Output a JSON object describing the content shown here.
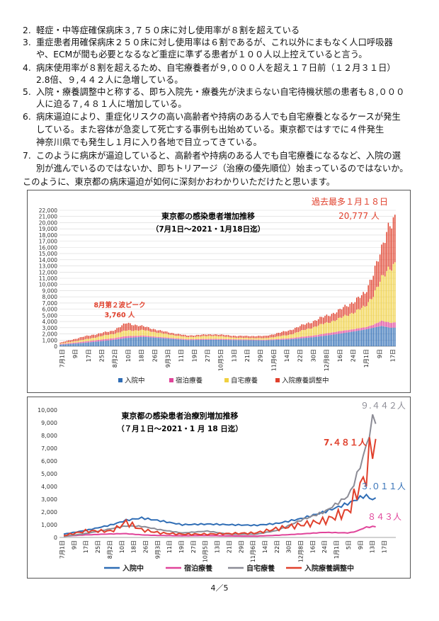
{
  "items": [
    {
      "num": "2.",
      "lines": [
        "軽症・中等症確保病床３,７５０床に対し使用率が８割を超えている"
      ]
    },
    {
      "num": "3.",
      "lines": [
        "重症患者用確保病床２５０床に対し使用率は６割であるが、これ以外にまもなく人口呼吸器",
        "や、ECMが間も必要となるなど重症に準ずる患者が１００人以上控えていると言う。"
      ]
    },
    {
      "num": "4.",
      "lines": [
        "病床使用率が８割を超えるため、自宅療養者が９,０００人を超え１７日前（１２月３１日）",
        "2.8倍、９,４４２人に急増している。"
      ]
    },
    {
      "num": "5.",
      "lines": [
        "入院・療養調整中と称する、即ち入院先・療養先が決まらない自宅待機状態の患者も８,０００",
        "人に迫る７,４８１人に増加している。"
      ]
    },
    {
      "num": "6.",
      "lines": [
        "病床逼迫により、重症化リスクの高い高齢者や持病のある人でも自宅療養となるケースが発生",
        "している。また容体が急変して死亡する事例も出始めている。東京都ではすでに４件発生",
        "神奈川県でも発生し１月に入り各地で目立ってきている。"
      ]
    },
    {
      "num": "7.",
      "lines": [
        "このように病床が逼迫していると、高齢者や持病のある人でも自宅療養になるなど、入院の選",
        "別が進んでいるのではないか、即ちトリアージ（治療の優先順位）始まっているのではないか。"
      ]
    }
  ],
  "closing": "このように、東京都の病床逼迫が如何に深刻かおわかりいただけたと思います。",
  "page_number": "4／5",
  "chart_data": [
    {
      "type": "bar",
      "stacked": true,
      "title": "東京都の感染患者増加推移",
      "subtitle": "（7月1日～2021・1月18日迄）",
      "x_tick_labels": [
        "7月1日",
        "9日",
        "17日",
        "25日",
        "8月2日",
        "10日",
        "18日",
        "26日",
        "9月3日",
        "11日",
        "19日",
        "27日",
        "10月5日",
        "13日",
        "21日",
        "29日",
        "11月6日",
        "14日",
        "22日",
        "30日",
        "12月8日",
        "16日",
        "24日",
        "1月1日",
        "9日",
        "17日"
      ],
      "y_ticks": [
        0,
        1000,
        2000,
        3000,
        4000,
        5000,
        6000,
        7000,
        8000,
        9000,
        10000,
        11000,
        12000,
        13000,
        14000,
        15000,
        16000,
        17000,
        18000,
        19000,
        20000,
        21000,
        22000
      ],
      "ylim": [
        0,
        22000
      ],
      "grid": true,
      "legend_position": "bottom",
      "series": [
        {
          "name": "入院中",
          "color": "#2f6db5"
        },
        {
          "name": "宿泊療養",
          "color": "#e0449a"
        },
        {
          "name": "自宅療養",
          "color": "#f0d040"
        },
        {
          "name": "入院療養調整中",
          "color": "#e0402c"
        }
      ],
      "daily_note": "values are per-day stacked totals; key points listed below",
      "x_dates": [
        "7/1",
        "7/15",
        "8/1",
        "8/10",
        "8/20",
        "9/1",
        "9/15",
        "10/1",
        "10/15",
        "11/1",
        "11/15",
        "12/1",
        "12/15",
        "12/31",
        "1/5",
        "1/10",
        "1/15",
        "1/18"
      ],
      "values": {
        "入院中": [
          260,
          550,
          1000,
          1350,
          1530,
          1300,
          1000,
          1050,
          1000,
          950,
          1100,
          1500,
          2000,
          2700,
          3000,
          3300,
          3000,
          3011
        ],
        "宿泊療養": [
          100,
          200,
          280,
          300,
          200,
          150,
          130,
          150,
          120,
          100,
          170,
          280,
          400,
          350,
          500,
          780,
          850,
          843
        ],
        "自宅療養": [
          80,
          300,
          700,
          900,
          870,
          600,
          350,
          500,
          250,
          250,
          550,
          1400,
          2000,
          3300,
          4900,
          6700,
          9200,
          9442
        ],
        "入院療養調整中": [
          150,
          500,
          500,
          1200,
          600,
          350,
          250,
          250,
          300,
          350,
          700,
          1000,
          1300,
          2100,
          3700,
          4500,
          7500,
          7481
        ]
      },
      "annotations": [
        {
          "text": "8月第２波ピーク",
          "value": "3,760 人"
        },
        {
          "text": "過去最多１月１８日",
          "value": "20,777 人"
        }
      ]
    },
    {
      "type": "line",
      "title": "東京都の感染患者治療別増加推移",
      "subtitle": "（７月１日～2021・1 月 18 日迄）",
      "x_tick_labels": [
        "7月1日",
        "9日",
        "17日",
        "25日",
        "8月2日",
        "10日",
        "18日",
        "26日",
        "9月3日",
        "11日",
        "19日",
        "27日",
        "10月5日",
        "13日",
        "21日",
        "29日",
        "11月6日",
        "14日",
        "22日",
        "30日",
        "12月8日",
        "16日",
        "24日",
        "1月1日",
        "5日",
        "9日",
        "13日",
        "17日"
      ],
      "y_ticks": [
        0,
        1000,
        2000,
        3000,
        4000,
        5000,
        6000,
        7000,
        8000,
        9000,
        10000
      ],
      "ylim": [
        0,
        10000
      ],
      "grid": false,
      "legend_position": "bottom",
      "x_dates": [
        "7/1",
        "7/15",
        "8/1",
        "8/10",
        "8/20",
        "9/1",
        "9/15",
        "10/1",
        "10/15",
        "11/1",
        "11/15",
        "12/1",
        "12/15",
        "12/31",
        "1/5",
        "1/10",
        "1/15",
        "1/18"
      ],
      "series": [
        {
          "name": "入院中",
          "color": "#2f6db5",
          "values": [
            260,
            550,
            1000,
            1350,
            1530,
            1300,
            1000,
            1050,
            1000,
            950,
            1100,
            1500,
            2000,
            2700,
            3000,
            3300,
            3000,
            3011
          ]
        },
        {
          "name": "宿泊療養",
          "color": "#e0449a",
          "values": [
            100,
            200,
            280,
            300,
            200,
            150,
            130,
            150,
            120,
            100,
            170,
            280,
            400,
            350,
            500,
            780,
            850,
            843
          ]
        },
        {
          "name": "自宅療養",
          "color": "#8c8c96",
          "values": [
            80,
            300,
            700,
            900,
            870,
            600,
            350,
            500,
            250,
            250,
            550,
            1400,
            2000,
            3300,
            4900,
            6700,
            9200,
            9442
          ]
        },
        {
          "name": "入院療養調整中",
          "color": "#e0402c",
          "values": [
            150,
            500,
            500,
            1200,
            600,
            350,
            250,
            250,
            300,
            350,
            700,
            1000,
            1300,
            2100,
            3700,
            4500,
            7500,
            7481
          ]
        }
      ],
      "end_labels": [
        {
          "series": "自宅療養",
          "text": "９.４４２人",
          "color": "#8c8c96"
        },
        {
          "series": "入院療養調整中",
          "text": "7.４８１人",
          "color": "#e0402c"
        },
        {
          "series": "入院中",
          "text": "３.０１１人",
          "color": "#2f6db5"
        },
        {
          "series": "宿泊療養",
          "text": "８４３人",
          "color": "#e0449a"
        }
      ]
    }
  ]
}
